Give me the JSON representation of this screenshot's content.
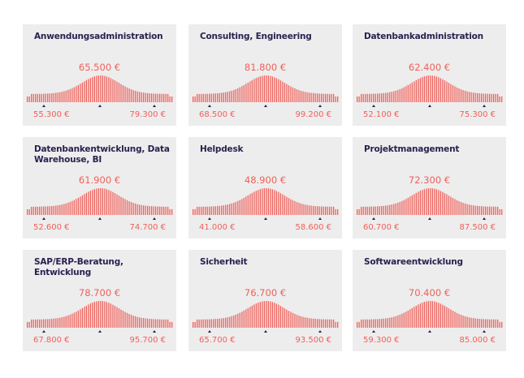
{
  "colors": {
    "bars": "#f0605a",
    "title": "#2a1f4f",
    "markers": "#2a1f4f",
    "card": "#ededed"
  },
  "chart_data": [
    {
      "type": "bar",
      "title": "Anwendungsadministration",
      "median": "65.500 €",
      "low": "55.300 €",
      "high": "79.300 €"
    },
    {
      "type": "bar",
      "title": "Consulting, Engineering",
      "median": "81.800 €",
      "low": "68.500 €",
      "high": "99.200 €"
    },
    {
      "type": "bar",
      "title": "Datenbankadministration",
      "median": "62.400 €",
      "low": "52.100 €",
      "high": "75.300 €"
    },
    {
      "type": "bar",
      "title": "Datenbankentwicklung, Data Warehouse, BI",
      "median": "61.900 €",
      "low": "52.600 €",
      "high": "74.700 €"
    },
    {
      "type": "bar",
      "title": "Helpdesk",
      "median": "48.900 €",
      "low": "41.000 €",
      "high": "58.600 €"
    },
    {
      "type": "bar",
      "title": "Projektmanagement",
      "median": "72.300 €",
      "low": "60.700 €",
      "high": "87.500 €"
    },
    {
      "type": "bar",
      "title": "SAP/ERP-Beratung, Entwicklung",
      "median": "78.700 €",
      "low": "67.800 €",
      "high": "95.700 €"
    },
    {
      "type": "bar",
      "title": "Sicherheit",
      "median": "76.700 €",
      "low": "65.700 €",
      "high": "93.500 €"
    },
    {
      "type": "bar",
      "title": "Softwareentwicklung",
      "median": "70.400 €",
      "low": "59.300 €",
      "high": "85.000 €"
    }
  ]
}
